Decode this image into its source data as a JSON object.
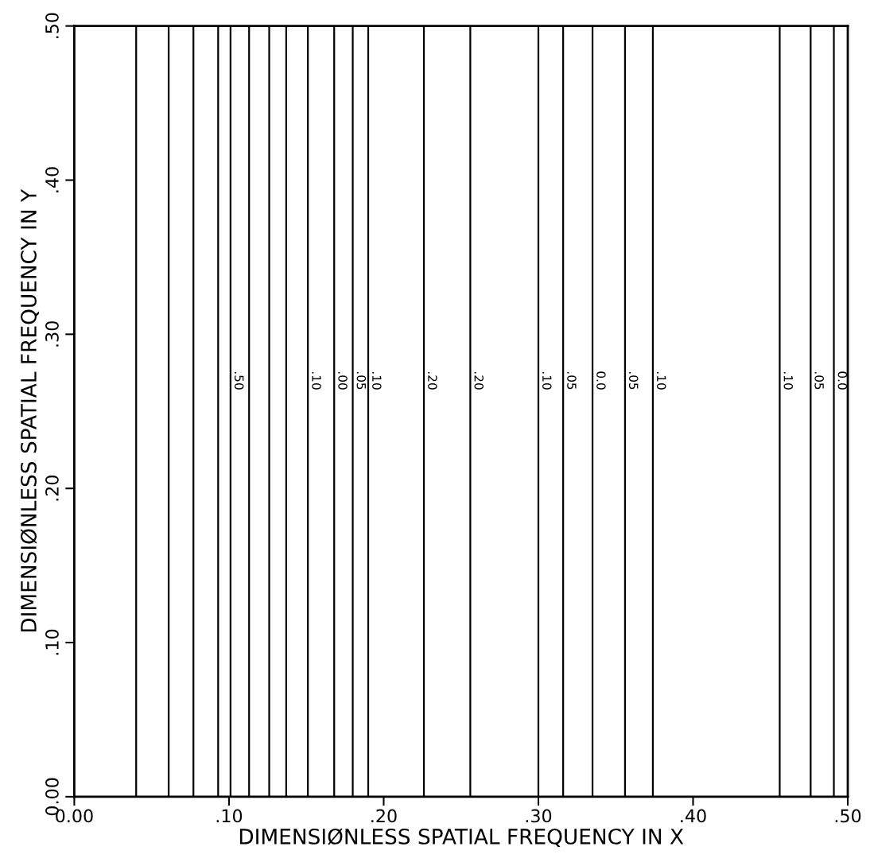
{
  "chart_data": {
    "type": "line",
    "xlabel": "DIMENSIØNLESS SPATIAL FREQUENCY IN X",
    "ylabel": "DIMENSIØNLESS SPATIAL FREQUENCY IN Y",
    "xlim": [
      0,
      0.5
    ],
    "ylim": [
      0,
      0.5
    ],
    "xticks": [
      {
        "value": 0,
        "label": "0.00"
      },
      {
        "value": 0.1,
        "label": ".10"
      },
      {
        "value": 0.2,
        "label": ".20"
      },
      {
        "value": 0.3,
        "label": ".30"
      },
      {
        "value": 0.4,
        "label": ".40"
      },
      {
        "value": 0.5,
        "label": ".50"
      }
    ],
    "yticks": [
      {
        "value": 0,
        "label": "0.00"
      },
      {
        "value": 0.1,
        "label": ".10"
      },
      {
        "value": 0.2,
        "label": ".20"
      },
      {
        "value": 0.3,
        "label": ".30"
      },
      {
        "value": 0.4,
        "label": ".40"
      },
      {
        "value": 0.5,
        "label": ".50"
      }
    ],
    "ref_lines": [
      {
        "axis": "x",
        "value": 0.04,
        "color": "#000000"
      },
      {
        "axis": "x",
        "value": 0.061,
        "color": "#000000"
      },
      {
        "axis": "x",
        "value": 0.077,
        "color": "#000000"
      },
      {
        "axis": "x",
        "value": 0.093,
        "color": "#000000"
      },
      {
        "axis": "x",
        "value": 0.101,
        "color": "#000000"
      },
      {
        "axis": "x",
        "value": 0.113,
        "color": "#000000"
      },
      {
        "axis": "x",
        "value": 0.126,
        "color": "#000000"
      },
      {
        "axis": "x",
        "value": 0.137,
        "color": "#000000"
      },
      {
        "axis": "x",
        "value": 0.151,
        "color": "#000000"
      },
      {
        "axis": "x",
        "value": 0.168,
        "color": "#000000"
      },
      {
        "axis": "x",
        "value": 0.18,
        "color": "#000000"
      },
      {
        "axis": "x",
        "value": 0.19,
        "color": "#000000"
      },
      {
        "axis": "x",
        "value": 0.226,
        "color": "#000000"
      },
      {
        "axis": "x",
        "value": 0.256,
        "color": "#000000"
      },
      {
        "axis": "x",
        "value": 0.3,
        "color": "#000000"
      },
      {
        "axis": "x",
        "value": 0.316,
        "color": "#000000"
      },
      {
        "axis": "x",
        "value": 0.335,
        "color": "#000000"
      },
      {
        "axis": "x",
        "value": 0.356,
        "color": "#000000"
      },
      {
        "axis": "x",
        "value": 0.374,
        "color": "#000000"
      },
      {
        "axis": "x",
        "value": 0.456,
        "color": "#000000"
      },
      {
        "axis": "x",
        "value": 0.476,
        "color": "#000000"
      },
      {
        "axis": "x",
        "value": 0.491,
        "color": "#000000"
      }
    ],
    "annotations": [
      {
        "text": ".50",
        "x": 0.101,
        "y": 0.27
      },
      {
        "text": ".10",
        "x": 0.151,
        "y": 0.27
      },
      {
        "text": ".00",
        "x": 0.168,
        "y": 0.27
      },
      {
        "text": ".05",
        "x": 0.18,
        "y": 0.27
      },
      {
        "text": ".10",
        "x": 0.19,
        "y": 0.27
      },
      {
        "text": ".20",
        "x": 0.226,
        "y": 0.27
      },
      {
        "text": ".20",
        "x": 0.256,
        "y": 0.27
      },
      {
        "text": ".10",
        "x": 0.3,
        "y": 0.27
      },
      {
        "text": ".05",
        "x": 0.316,
        "y": 0.27
      },
      {
        "text": "0.0",
        "x": 0.335,
        "y": 0.27
      },
      {
        "text": ".05",
        "x": 0.356,
        "y": 0.27
      },
      {
        "text": ".10",
        "x": 0.374,
        "y": 0.27
      },
      {
        "text": ".10",
        "x": 0.456,
        "y": 0.27
      },
      {
        "text": ".05",
        "x": 0.476,
        "y": 0.27
      },
      {
        "text": "0.0",
        "x": 0.491,
        "y": 0.27
      }
    ]
  }
}
